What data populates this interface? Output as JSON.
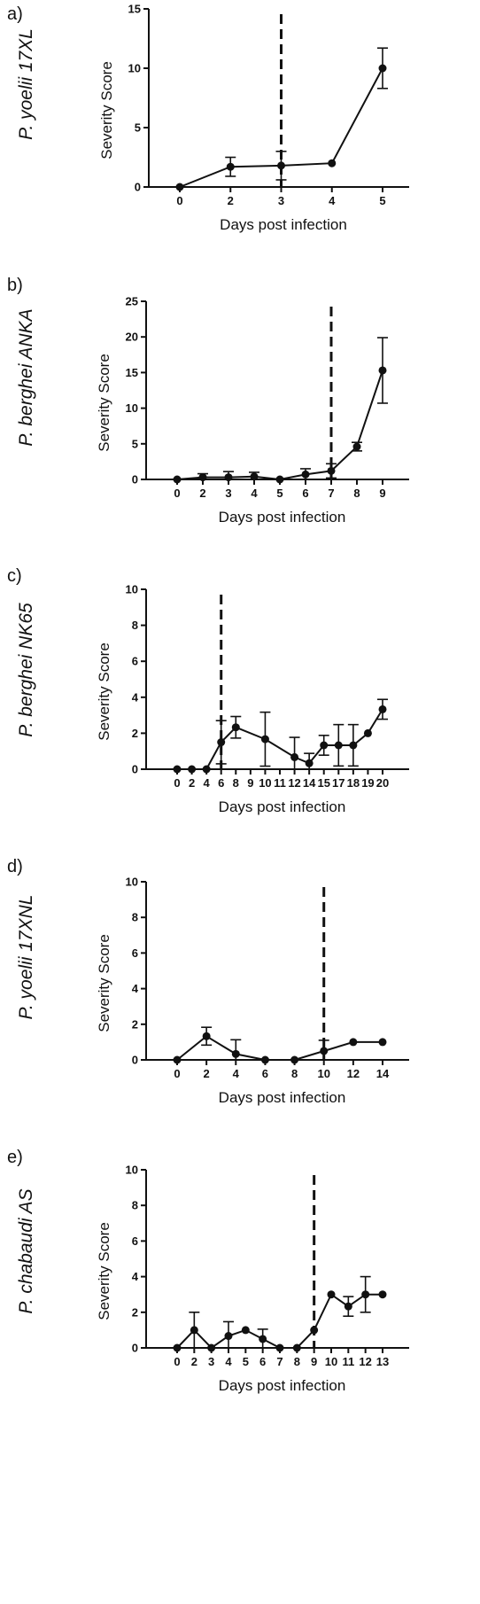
{
  "colors": {
    "line": "#111111",
    "background": "#ffffff"
  },
  "chart_data": [
    {
      "type": "line",
      "panel": "a)",
      "species_label": "P. yoelii 17XL",
      "xlabel": "Days post infection",
      "ylabel": "Severity Score",
      "ylim": [
        0,
        15
      ],
      "y_ticks": [
        0,
        5,
        10,
        15
      ],
      "x_categories": [
        "0",
        "2",
        "3",
        "4",
        "5"
      ],
      "series": [
        {
          "values": [
            0,
            1.7,
            1.8,
            2.0,
            10.0
          ],
          "error": [
            0,
            0.8,
            1.2,
            0,
            1.7
          ]
        }
      ],
      "vline_at": "3",
      "grid": false
    },
    {
      "type": "line",
      "panel": "b)",
      "species_label": "P. berghei ANKA",
      "xlabel": "Days post infection",
      "ylabel": "Severity Score",
      "ylim": [
        0,
        25
      ],
      "y_ticks": [
        0,
        5,
        10,
        15,
        20,
        25
      ],
      "x_categories": [
        "0",
        "2",
        "3",
        "4",
        "5",
        "6",
        "7",
        "8",
        "9"
      ],
      "series": [
        {
          "values": [
            0,
            0.3,
            0.3,
            0.4,
            0,
            0.7,
            1.2,
            4.6,
            15.3
          ],
          "error": [
            0,
            0.5,
            0.8,
            0.6,
            0,
            0.8,
            1.0,
            0.6,
            4.6
          ]
        }
      ],
      "vline_at": "7",
      "grid": false
    },
    {
      "type": "line",
      "panel": "c)",
      "species_label": "P. berghei NK65",
      "xlabel": "Days post infection",
      "ylabel": "Severity Score",
      "ylim": [
        0,
        10
      ],
      "y_ticks": [
        0,
        2,
        4,
        6,
        8,
        10
      ],
      "x_categories": [
        "0",
        "2",
        "4",
        "6",
        "8",
        "9",
        "10",
        "11",
        "12",
        "14",
        "15",
        "17",
        "18",
        "19",
        "20"
      ],
      "series": [
        {
          "values": [
            0,
            0,
            0,
            1.5,
            2.33,
            null,
            1.67,
            null,
            0.67,
            0.33,
            1.33,
            1.33,
            1.33,
            2.0,
            3.33
          ],
          "error": [
            0,
            0,
            0,
            1.2,
            0.6,
            null,
            1.5,
            null,
            1.1,
            0.55,
            0.55,
            1.15,
            1.15,
            0,
            0.55
          ]
        }
      ],
      "vline_at": "6",
      "grid": false
    },
    {
      "type": "line",
      "panel": "d)",
      "species_label": "P. yoelii 17XNL",
      "xlabel": "Days post infection",
      "ylabel": "Severity Score",
      "ylim": [
        0,
        10
      ],
      "y_ticks": [
        0,
        2,
        4,
        6,
        8,
        10
      ],
      "x_categories": [
        "0",
        "2",
        "4",
        "6",
        "8",
        "10",
        "12",
        "14"
      ],
      "series": [
        {
          "values": [
            0,
            1.33,
            0.33,
            0,
            0,
            0.5,
            1.0,
            1.0
          ],
          "error": [
            0,
            0.5,
            0.8,
            0,
            0,
            0.6,
            0,
            0
          ]
        }
      ],
      "vline_at": "10",
      "grid": false
    },
    {
      "type": "line",
      "panel": "e)",
      "species_label": "P. chabaudi AS",
      "xlabel": "Days post infection",
      "ylabel": "Severity Score",
      "ylim": [
        0,
        10
      ],
      "y_ticks": [
        0,
        2,
        4,
        6,
        8,
        10
      ],
      "x_categories": [
        "0",
        "2",
        "3",
        "4",
        "5",
        "6",
        "7",
        "8",
        "9",
        "10",
        "11",
        "12",
        "13"
      ],
      "series": [
        {
          "values": [
            0,
            1.0,
            0,
            0.67,
            1.0,
            0.5,
            0,
            0,
            1.0,
            3.0,
            2.33,
            3.0,
            3.0
          ],
          "error": [
            0,
            1.0,
            0,
            0.8,
            0,
            0.55,
            0,
            0,
            0,
            0,
            0.55,
            1.0,
            0
          ]
        }
      ],
      "vline_at": "9",
      "grid": false
    }
  ]
}
